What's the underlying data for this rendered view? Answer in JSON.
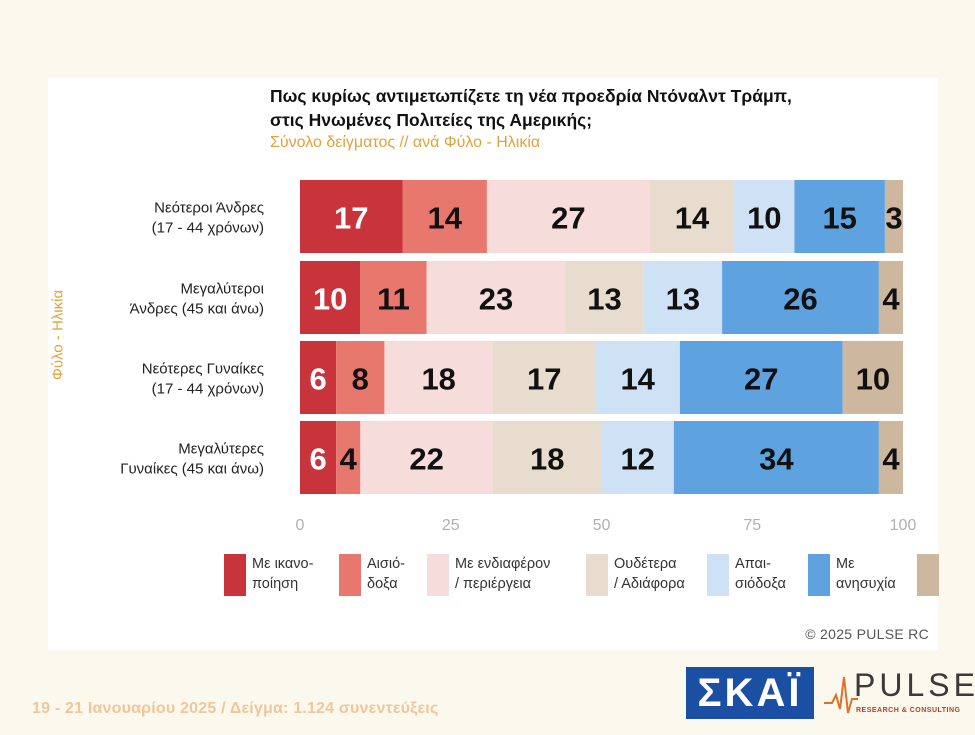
{
  "title_line1": "Πως κυρίως αντιμετωπίζετε τη νέα προεδρία Ντόναλντ Τράμπ,",
  "title_line2": "στις Ηνωμένες Πολιτείες της Αμερικής;",
  "subtitle": "Σύνολο δείγματος // ανά Φύλο - Ηλικία",
  "y_axis_title": "Φύλο - Ηλικία",
  "copyright": "© 2025 PULSE RC",
  "footer": "19 - 21 Ιανουαρίου 2025 / Δείγμα: 1.124 συνεντεύξεις",
  "logos": {
    "skai": "ΣΚΑΪ",
    "pulse": "PULSE",
    "pulse_sub": "RESEARCH & CONSULTING"
  },
  "legend": [
    {
      "line1": "Με ικανο-",
      "line2": "ποίηση",
      "color": "#c9343c"
    },
    {
      "line1": "Αισιό-",
      "line2": "δοξα",
      "color": "#e8776d"
    },
    {
      "line1": "Με ενδιαφέρον",
      "line2": "/ περιέργεια",
      "color": "#f6dcdb"
    },
    {
      "line1": "Ουδέτερα",
      "line2": "/ Αδιάφορα",
      "color": "#e7dccd"
    },
    {
      "line1": "Απαι-",
      "line2": "σιόδοξα",
      "color": "#cfe2f5"
    },
    {
      "line1": "Με",
      "line2": "ανησυχία",
      "color": "#5fa2e0"
    },
    {
      "line1": "",
      "line2": "",
      "color": "#cdb79e"
    }
  ],
  "chart_data": {
    "type": "bar",
    "orientation": "horizontal",
    "stacked": true,
    "title": "Πως κυρίως αντιμετωπίζετε τη νέα προεδρία Ντόναλντ Τράμπ, στις Ηνωμένες Πολιτείες της Αμερικής;",
    "subtitle": "Σύνολο δείγματος // ανά Φύλο - Ηλικία",
    "ylabel": "Φύλο - Ηλικία",
    "xlim": [
      0,
      100
    ],
    "x_ticks": [
      0,
      25,
      50,
      75,
      100
    ],
    "grid": false,
    "legend_position": "bottom",
    "categories": [
      {
        "line1": "Νεότεροι Άνδρες",
        "line2": "(17 - 44 χρόνων)"
      },
      {
        "line1": "Μεγαλύτεροι",
        "line2": "Άνδρες (45 και άνω)"
      },
      {
        "line1": "Νεότερες Γυναίκες",
        "line2": "(17 - 44 χρόνων)"
      },
      {
        "line1": "Μεγαλύτερες",
        "line2": "Γυναίκες (45 και άνω)"
      }
    ],
    "series": [
      {
        "name": "Με ικανοποίηση",
        "values": [
          17,
          10,
          6,
          6
        ]
      },
      {
        "name": "Αισιόδοξα",
        "values": [
          14,
          11,
          8,
          4
        ]
      },
      {
        "name": "Με ενδιαφέρον / περιέργεια",
        "values": [
          27,
          23,
          18,
          22
        ]
      },
      {
        "name": "Ουδέτερα / Αδιάφορα",
        "values": [
          14,
          13,
          17,
          18
        ]
      },
      {
        "name": "Απαισιόδοξα",
        "values": [
          10,
          13,
          14,
          12
        ]
      },
      {
        "name": "Με ανησυχία",
        "values": [
          15,
          26,
          27,
          34
        ]
      },
      {
        "name": "",
        "values": [
          3,
          4,
          10,
          4
        ]
      }
    ]
  }
}
